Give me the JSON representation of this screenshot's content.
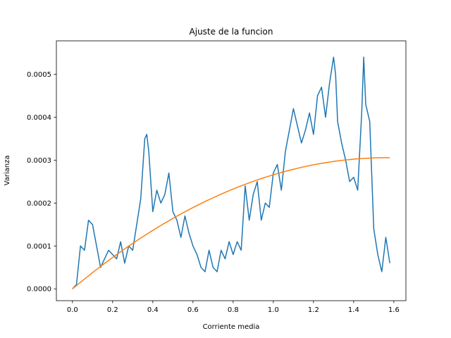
{
  "chart_data": {
    "type": "line",
    "title": "Ajuste de la funcion",
    "xlabel": "Corriente media",
    "ylabel": "Varianza",
    "xlim": [
      -0.08,
      1.66
    ],
    "ylim": [
      -2.75e-05,
      0.000578
    ],
    "x_ticks": [
      0.0,
      0.2,
      0.4,
      0.6,
      0.8,
      1.0,
      1.2,
      1.4,
      1.6
    ],
    "x_tick_labels": [
      "0.0",
      "0.2",
      "0.4",
      "0.6",
      "0.8",
      "1.0",
      "1.2",
      "1.4",
      "1.6"
    ],
    "y_ticks": [
      0.0,
      0.0001,
      0.0002,
      0.0003,
      0.0004,
      0.0005
    ],
    "y_tick_labels": [
      "0.0000",
      "0.0001",
      "0.0002",
      "0.0003",
      "0.0004",
      "0.0005"
    ],
    "grid": false,
    "legend": "none",
    "series": [
      {
        "color": "#1f77b4",
        "x": [
          0.0,
          0.02,
          0.04,
          0.06,
          0.08,
          0.1,
          0.12,
          0.14,
          0.16,
          0.18,
          0.2,
          0.22,
          0.24,
          0.26,
          0.28,
          0.3,
          0.32,
          0.34,
          0.36,
          0.37,
          0.38,
          0.4,
          0.42,
          0.44,
          0.46,
          0.48,
          0.5,
          0.52,
          0.54,
          0.56,
          0.58,
          0.6,
          0.62,
          0.64,
          0.66,
          0.68,
          0.7,
          0.72,
          0.74,
          0.76,
          0.78,
          0.8,
          0.82,
          0.84,
          0.86,
          0.88,
          0.9,
          0.92,
          0.94,
          0.96,
          0.98,
          1.0,
          1.02,
          1.04,
          1.06,
          1.08,
          1.1,
          1.12,
          1.14,
          1.16,
          1.18,
          1.2,
          1.22,
          1.24,
          1.26,
          1.28,
          1.3,
          1.31,
          1.32,
          1.34,
          1.36,
          1.38,
          1.4,
          1.42,
          1.44,
          1.45,
          1.46,
          1.48,
          1.5,
          1.52,
          1.54,
          1.56,
          1.58
        ],
        "y": [
          0.0,
          1e-05,
          0.0001,
          9e-05,
          0.00016,
          0.00015,
          0.0001,
          5e-05,
          7e-05,
          9e-05,
          8e-05,
          7e-05,
          0.00011,
          6e-05,
          0.0001,
          9e-05,
          0.00015,
          0.00021,
          0.00035,
          0.00036,
          0.00032,
          0.00018,
          0.00023,
          0.0002,
          0.00022,
          0.00027,
          0.00018,
          0.00016,
          0.00012,
          0.00017,
          0.00013,
          0.0001,
          8e-05,
          5e-05,
          4e-05,
          9e-05,
          5e-05,
          4e-05,
          9e-05,
          7e-05,
          0.00011,
          8e-05,
          0.00011,
          9e-05,
          0.00024,
          0.00016,
          0.00022,
          0.00025,
          0.00016,
          0.0002,
          0.00019,
          0.00027,
          0.00029,
          0.00023,
          0.00032,
          0.00037,
          0.00042,
          0.00038,
          0.00034,
          0.00037,
          0.00041,
          0.00036,
          0.00045,
          0.00047,
          0.0004,
          0.00048,
          0.00054,
          0.0005,
          0.00039,
          0.00034,
          0.0003,
          0.00025,
          0.00026,
          0.00023,
          0.00041,
          0.00054,
          0.00043,
          0.00039,
          0.00014,
          8e-05,
          4e-05,
          0.00012,
          6e-05
        ]
      },
      {
        "color": "#ff7f0e",
        "fit": "parabola",
        "x_range": [
          0.0,
          1.58
        ]
      }
    ]
  }
}
